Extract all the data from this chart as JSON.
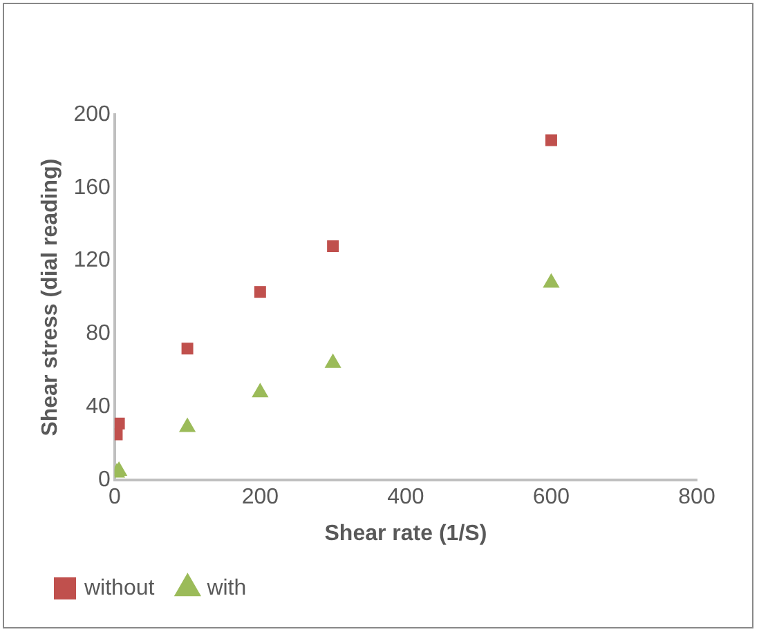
{
  "chart_data": {
    "type": "scatter",
    "xlabel": "Shear rate (1/S)",
    "ylabel": "Shear stress (dial reading)",
    "xlim": [
      0,
      800
    ],
    "xticks": [
      0,
      200,
      400,
      600,
      800
    ],
    "ylim": [
      0,
      200
    ],
    "yticks": [
      0,
      40,
      80,
      120,
      160,
      200
    ],
    "grid": false,
    "legend": "bottom",
    "x": [
      3,
      6,
      100,
      200,
      300,
      600
    ],
    "series": [
      {
        "name": "without",
        "color": "#c0504d",
        "marker": "square",
        "values": [
          25,
          31,
          72,
          103,
          128,
          186
        ]
      },
      {
        "name": "with",
        "color": "#9bbb59",
        "marker": "triangle",
        "values": [
          4,
          5,
          29,
          48,
          64,
          108
        ]
      }
    ]
  }
}
